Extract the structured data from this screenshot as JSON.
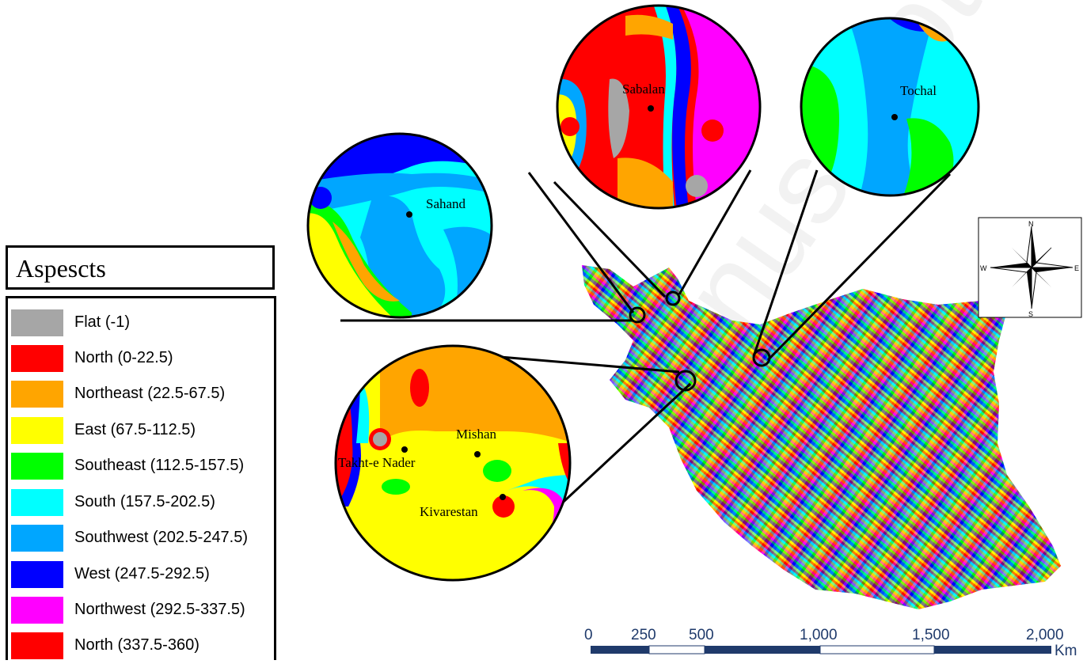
{
  "legend": {
    "title": "Aspescts",
    "items": [
      {
        "label": "Flat (-1)",
        "color": "#a6a6a6"
      },
      {
        "label": "North (0-22.5)",
        "color": "#ff0000"
      },
      {
        "label": "Northeast (22.5-67.5)",
        "color": "#ffa500"
      },
      {
        "label": "East (67.5-112.5)",
        "color": "#ffff00"
      },
      {
        "label": "Southeast (112.5-157.5)",
        "color": "#00ff00"
      },
      {
        "label": "South (157.5-202.5)",
        "color": "#00ffff"
      },
      {
        "label": "Southwest (202.5-247.5)",
        "color": "#00a6ff"
      },
      {
        "label": "West (247.5-292.5)",
        "color": "#0000ff"
      },
      {
        "label": "Northwest (292.5-337.5)",
        "color": "#ff00ff"
      },
      {
        "label": "North (337.5-360)",
        "color": "#ff0000"
      }
    ]
  },
  "insets": {
    "sahand": {
      "label": "Sahand"
    },
    "sabalan": {
      "label": "Sabalan"
    },
    "tochal": {
      "label": "Tochal"
    },
    "southwest": {
      "labels": [
        "Mishan",
        "Takht-e Nader",
        "Kivarestan"
      ]
    }
  },
  "compass": {
    "n": "N",
    "s": "S",
    "e": "E",
    "w": "W"
  },
  "scale_bar": {
    "ticks": [
      "0",
      "250",
      "500",
      "1,000",
      "1,500",
      "2,000"
    ],
    "unit": "Km"
  },
  "watermark": "anuscript"
}
